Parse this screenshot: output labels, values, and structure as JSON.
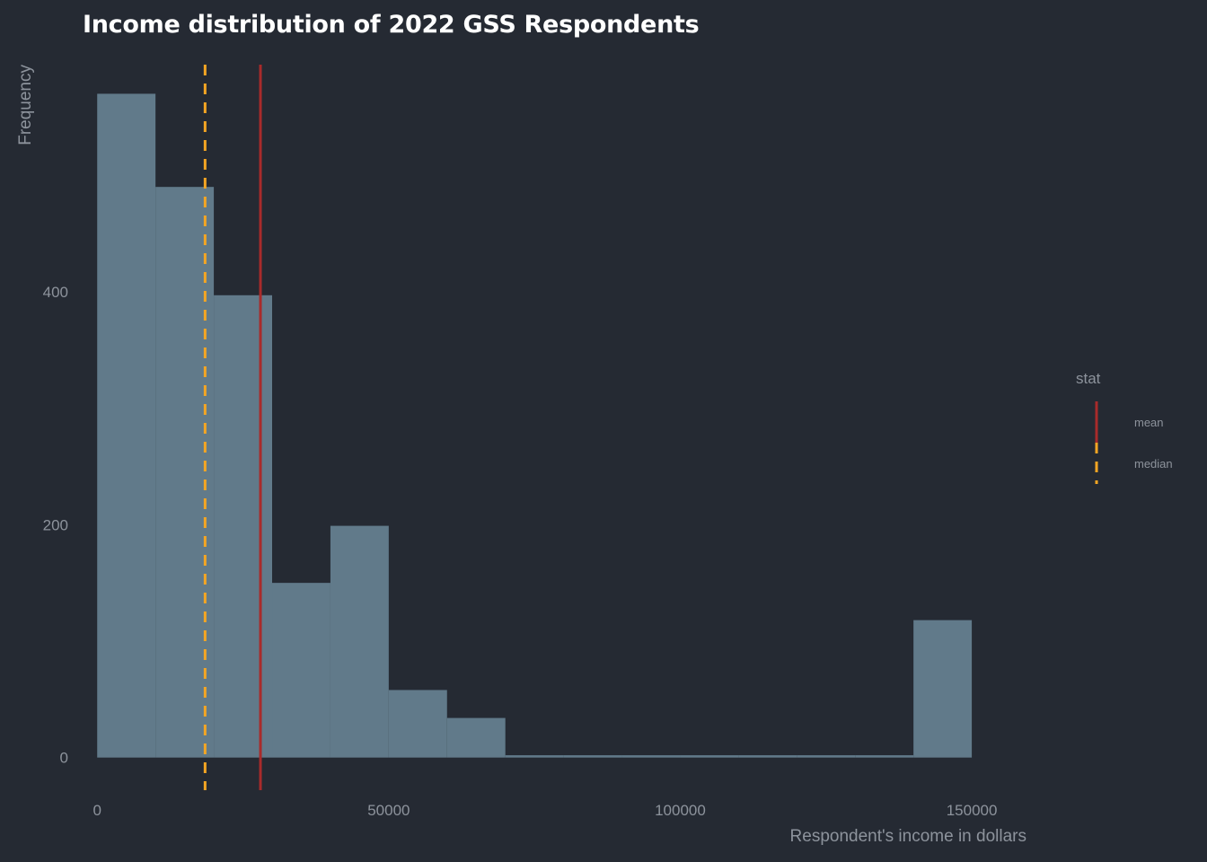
{
  "chart_data": {
    "type": "bar",
    "title": "Income distribution of 2022 GSS Respondents",
    "xlabel": "Respondent's income in dollars",
    "ylabel": "Frequency",
    "xlim": [
      -2500,
      162000
    ],
    "ylim": [
      -28,
      595
    ],
    "x_ticks": [
      0,
      50000,
      100000,
      150000
    ],
    "y_ticks": [
      0,
      200,
      400
    ],
    "bin_width": 10000,
    "bins": [
      {
        "start": 0,
        "end": 10000,
        "count": 570
      },
      {
        "start": 10000,
        "end": 20000,
        "count": 490
      },
      {
        "start": 20000,
        "end": 30000,
        "count": 397
      },
      {
        "start": 30000,
        "end": 40000,
        "count": 150
      },
      {
        "start": 40000,
        "end": 50000,
        "count": 199
      },
      {
        "start": 50000,
        "end": 60000,
        "count": 58
      },
      {
        "start": 60000,
        "end": 70000,
        "count": 34
      },
      {
        "start": 70000,
        "end": 80000,
        "count": 2
      },
      {
        "start": 80000,
        "end": 90000,
        "count": 2
      },
      {
        "start": 90000,
        "end": 100000,
        "count": 2
      },
      {
        "start": 100000,
        "end": 110000,
        "count": 2
      },
      {
        "start": 110000,
        "end": 120000,
        "count": 2
      },
      {
        "start": 120000,
        "end": 130000,
        "count": 2
      },
      {
        "start": 130000,
        "end": 140000,
        "count": 2
      },
      {
        "start": 140000,
        "end": 150000,
        "count": 118
      }
    ],
    "bar_color": "#617a8a",
    "reference_lines": [
      {
        "name": "mean",
        "value": 28000,
        "color": "#a82b2b",
        "dash": "solid"
      },
      {
        "name": "median",
        "value": 18500,
        "color": "#f5a623",
        "dash": "dashed"
      }
    ],
    "legend": {
      "title": "stat",
      "position": "right",
      "entries": [
        "mean",
        "median"
      ]
    },
    "grid": false
  }
}
